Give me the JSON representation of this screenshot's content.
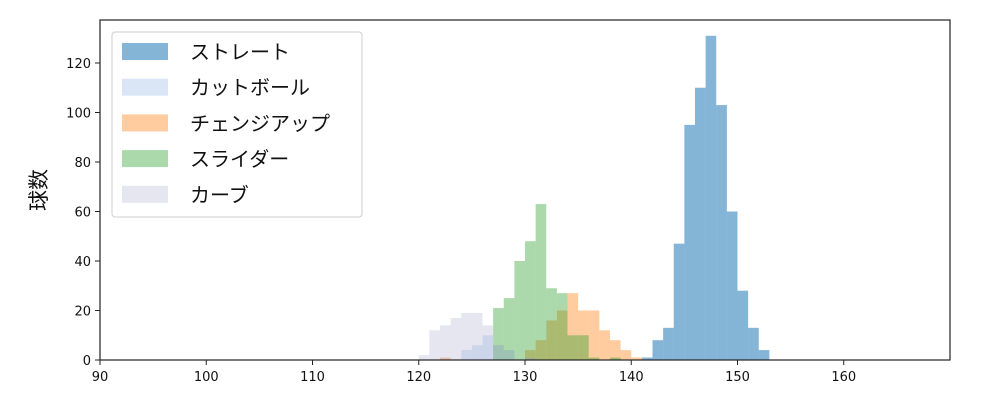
{
  "chart_data": {
    "type": "bar",
    "subtype": "overlaid-histogram",
    "title": "",
    "xlabel": "",
    "ylabel": "球数",
    "xlim": [
      90,
      170
    ],
    "ylim": [
      0,
      137
    ],
    "xticks": [
      90,
      100,
      110,
      120,
      130,
      140,
      150,
      160
    ],
    "yticks": [
      0,
      20,
      40,
      60,
      80,
      100,
      120
    ],
    "grid": false,
    "legend_placement": "top-left",
    "bin_width": 1,
    "series": [
      {
        "name": "ストレート",
        "color": "#1f77b4",
        "opacity": 0.55,
        "bins": [
          [
            141,
            1
          ],
          [
            142,
            8
          ],
          [
            143,
            13
          ],
          [
            144,
            47
          ],
          [
            145,
            95
          ],
          [
            146,
            110
          ],
          [
            147,
            131
          ],
          [
            148,
            103
          ],
          [
            149,
            60
          ],
          [
            150,
            28
          ],
          [
            151,
            13
          ],
          [
            152,
            4
          ]
        ]
      },
      {
        "name": "カットボール",
        "color": "#aec7e8",
        "opacity": 0.45,
        "bins": [
          [
            124,
            4
          ],
          [
            125,
            6
          ],
          [
            126,
            10
          ],
          [
            127,
            6
          ],
          [
            128,
            4
          ],
          [
            130,
            1
          ]
        ]
      },
      {
        "name": "チェンジアップ",
        "color": "#ff7f0e",
        "opacity": 0.4,
        "bins": [
          [
            122,
            1
          ],
          [
            130,
            4
          ],
          [
            131,
            8
          ],
          [
            132,
            16
          ],
          [
            133,
            20
          ],
          [
            134,
            27
          ],
          [
            135,
            20
          ],
          [
            136,
            20
          ],
          [
            137,
            12
          ],
          [
            138,
            8
          ],
          [
            139,
            4
          ],
          [
            140,
            1
          ]
        ]
      },
      {
        "name": "スライダー",
        "color": "#2ca02c",
        "opacity": 0.4,
        "bins": [
          [
            127,
            21
          ],
          [
            128,
            25
          ],
          [
            129,
            40
          ],
          [
            130,
            48
          ],
          [
            131,
            63
          ],
          [
            132,
            29
          ],
          [
            133,
            27
          ],
          [
            134,
            10
          ],
          [
            135,
            10
          ],
          [
            136,
            1
          ],
          [
            138,
            1
          ]
        ]
      },
      {
        "name": "カーブ",
        "color": "#b0b0d4",
        "opacity": 0.32,
        "bins": [
          [
            120,
            2
          ],
          [
            121,
            12
          ],
          [
            122,
            14
          ],
          [
            123,
            17
          ],
          [
            124,
            19
          ],
          [
            125,
            19
          ],
          [
            126,
            14
          ],
          [
            127,
            6
          ],
          [
            128,
            4
          ],
          [
            130,
            1
          ]
        ]
      }
    ]
  }
}
